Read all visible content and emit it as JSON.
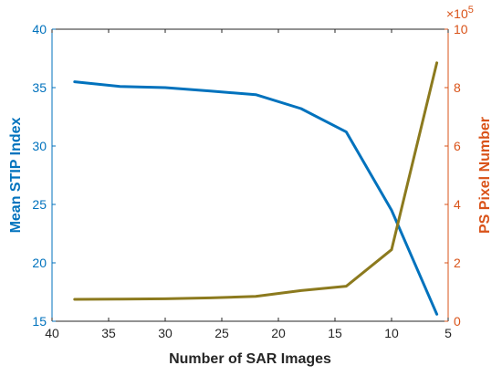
{
  "chart_data": {
    "type": "line",
    "xlabel": "Number of SAR Images",
    "ylabel": "Mean STIP Index",
    "y2label": "PS Pixel Number",
    "xlim": [
      40,
      5
    ],
    "x_reversed": true,
    "ylim": [
      15,
      40
    ],
    "y2lim": [
      0,
      10
    ],
    "y2_multiplier": "×10",
    "y2_exponent": "5",
    "x_ticks": [
      "40",
      "35",
      "30",
      "25",
      "20",
      "15",
      "10",
      "5"
    ],
    "y_ticks": [
      "15",
      "20",
      "25",
      "30",
      "35",
      "40"
    ],
    "y2_ticks": [
      "0",
      "2",
      "4",
      "6",
      "8",
      "10"
    ],
    "x": [
      38,
      34,
      30,
      26,
      22,
      18,
      14,
      10,
      6
    ],
    "grid": false,
    "series": [
      {
        "axis": "left",
        "color": "#0072BD",
        "values": [
          35.5,
          35.1,
          35.0,
          34.7,
          34.4,
          33.2,
          31.2,
          24.5,
          15.6
        ]
      },
      {
        "axis": "right",
        "color": "#8C7A1E",
        "values": [
          0.75,
          0.76,
          0.77,
          0.8,
          0.85,
          1.05,
          1.2,
          2.45,
          8.85
        ]
      }
    ],
    "colors": {
      "left_axis": "#0072BD",
      "right_axis": "#D95319",
      "axis_line": "#262626"
    }
  }
}
